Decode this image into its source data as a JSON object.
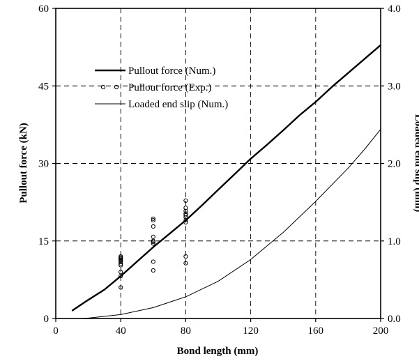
{
  "chart_data": {
    "type": "line",
    "title": "",
    "xlabel": "Bond length (mm)",
    "ylabel": "Pullout force (kN)",
    "y2label": "Loaded end slip (mm)",
    "xlim": [
      0,
      200
    ],
    "ylim": [
      0,
      60
    ],
    "y2lim": [
      0.0,
      4.0
    ],
    "xticks": [
      0,
      40,
      80,
      120,
      160,
      200
    ],
    "yticks": [
      0,
      15,
      30,
      45,
      60
    ],
    "y2ticks": [
      "0.0",
      "1.0",
      "2.0",
      "3.0",
      "4.0"
    ],
    "grid": true,
    "legend_position": "top-left",
    "series": [
      {
        "name": "Pullout force (Num.)",
        "axis": "left",
        "style": "thick-line",
        "x": [
          10,
          20,
          30,
          40,
          50,
          60,
          70,
          80,
          90,
          100,
          110,
          120,
          130,
          140,
          150,
          160,
          170,
          180,
          190,
          200
        ],
        "y": [
          1.5,
          3.6,
          5.6,
          8.2,
          11.0,
          13.8,
          16.4,
          19.0,
          21.9,
          24.9,
          27.9,
          30.9,
          33.6,
          36.4,
          39.3,
          41.9,
          44.8,
          47.5,
          50.2,
          52.9
        ]
      },
      {
        "name": "Pullout force (Exp.)",
        "axis": "left",
        "style": "open-circle",
        "x": [
          40,
          40,
          40,
          40,
          40,
          40,
          40,
          40,
          40,
          40,
          40,
          60,
          60,
          60,
          60,
          60,
          60,
          60,
          60,
          60,
          80,
          80,
          80,
          80,
          80,
          80,
          80,
          80,
          80,
          80
        ],
        "y": [
          6.0,
          8.2,
          9.0,
          10.3,
          10.6,
          11.0,
          11.2,
          11.4,
          11.6,
          11.8,
          12.0,
          9.3,
          11.0,
          14.5,
          14.8,
          15.0,
          15.8,
          17.8,
          19.0,
          19.3,
          10.7,
          12.0,
          18.6,
          19.0,
          19.6,
          20.0,
          20.3,
          20.8,
          21.4,
          22.8
        ]
      },
      {
        "name": "Loaded end slip (Num.)",
        "axis": "right",
        "style": "thin-line",
        "x": [
          15,
          20,
          40,
          60,
          80,
          100,
          120,
          140,
          160,
          180,
          190,
          200
        ],
        "y": [
          0.0,
          0.005,
          0.05,
          0.14,
          0.28,
          0.48,
          0.76,
          1.11,
          1.51,
          1.94,
          2.18,
          2.44
        ]
      }
    ]
  }
}
